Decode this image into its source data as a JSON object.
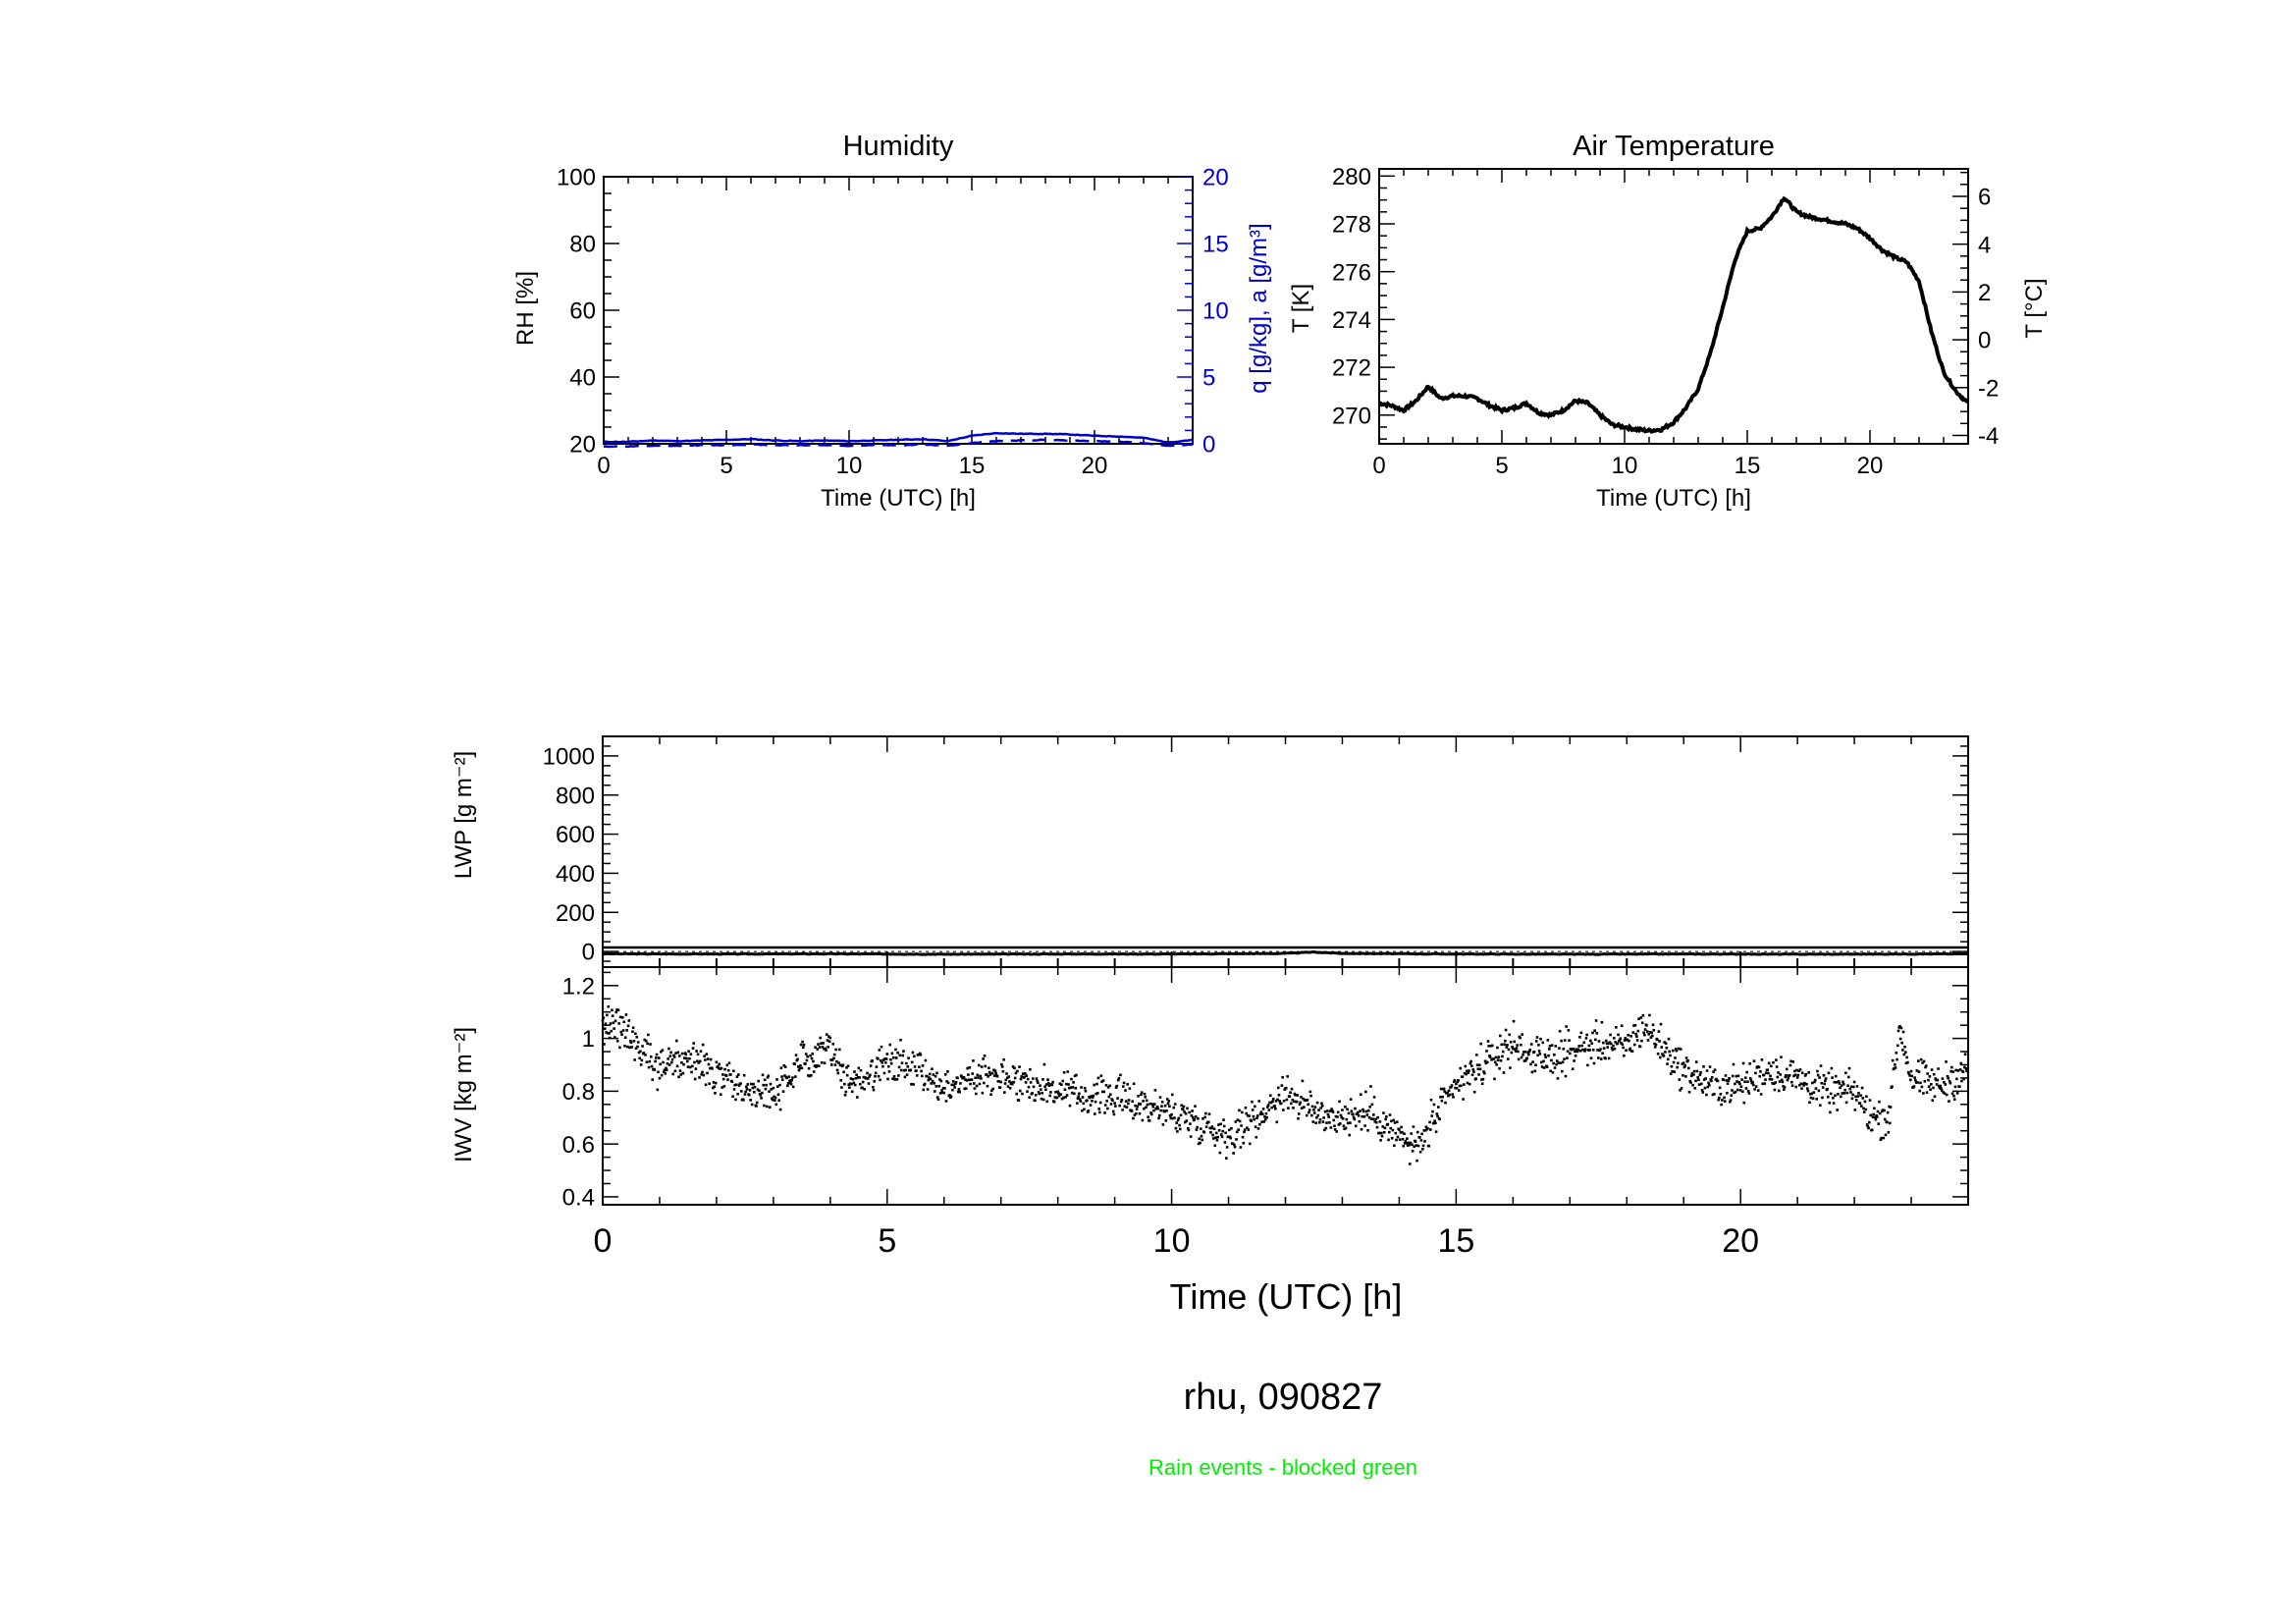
{
  "figure": {
    "station_label": "rhu, 090827",
    "rain_note": "Rain events - blocked green",
    "rain_note_color": "#00ee00"
  },
  "chart_data": [
    {
      "id": "humidity",
      "type": "line",
      "title": "Humidity",
      "xlabel": "Time (UTC) [h]",
      "ylabel": "RH [%]",
      "y2label": "q [g/kg], a [g/m³]",
      "y2color": "#0000cc",
      "xlim": [
        0,
        24
      ],
      "ylim": [
        20,
        100
      ],
      "y2lim": [
        0,
        20
      ],
      "xticks": [
        0,
        5,
        10,
        15,
        20
      ],
      "yticks": [
        20,
        40,
        60,
        80,
        100
      ],
      "y2ticks": [
        0,
        5,
        10,
        15,
        20
      ],
      "series": [
        {
          "axis": "right",
          "style": "solid",
          "color": "#0000cc",
          "x": [
            0,
            1,
            2,
            3,
            4,
            5,
            6,
            7,
            8,
            9,
            10,
            11,
            12,
            13,
            14,
            15,
            16,
            17,
            18,
            19,
            20,
            21,
            22,
            23,
            24
          ],
          "y": [
            0.15,
            0.15,
            0.25,
            0.2,
            0.25,
            0.3,
            0.35,
            0.25,
            0.2,
            0.25,
            0.2,
            0.25,
            0.3,
            0.35,
            0.2,
            0.6,
            0.8,
            0.75,
            0.75,
            0.7,
            0.6,
            0.55,
            0.45,
            0.1,
            0.3
          ]
        },
        {
          "axis": "right",
          "style": "dashed",
          "color": "#0000cc",
          "x": [
            0,
            1,
            2,
            3,
            4,
            5,
            6,
            7,
            8,
            9,
            10,
            11,
            12,
            13,
            14,
            15,
            16,
            17,
            18,
            19,
            20,
            21,
            22,
            23,
            24
          ],
          "y": [
            -0.2,
            -0.2,
            -0.15,
            -0.15,
            -0.1,
            -0.1,
            -0.05,
            -0.1,
            -0.1,
            -0.1,
            -0.15,
            -0.1,
            -0.1,
            -0.05,
            -0.15,
            0.05,
            0.2,
            0.25,
            0.3,
            0.25,
            0.2,
            0.15,
            0.05,
            -0.15,
            -0.05
          ]
        }
      ]
    },
    {
      "id": "air-temperature",
      "type": "line",
      "title": "Air Temperature",
      "xlabel": "Time (UTC) [h]",
      "ylabel": "T [K]",
      "y2label": "T [°C]",
      "xlim": [
        0,
        24
      ],
      "ylim": [
        268.8,
        280.3
      ],
      "y2lim": [
        -4.35,
        7.15
      ],
      "xticks": [
        0,
        5,
        10,
        15,
        20
      ],
      "yticks": [
        270,
        272,
        274,
        276,
        278,
        280
      ],
      "y2ticks": [
        -4,
        -2,
        0,
        2,
        4,
        6
      ],
      "series": [
        {
          "color": "#000000",
          "x": [
            0,
            0.5,
            1,
            1.5,
            2,
            2.5,
            3,
            3.5,
            4,
            4.5,
            5,
            5.5,
            6,
            6.5,
            7,
            7.5,
            8,
            8.5,
            9,
            9.5,
            10,
            10.5,
            11,
            11.5,
            12,
            12.5,
            13,
            13.5,
            14,
            14.5,
            15,
            15.5,
            16,
            16.5,
            17,
            17.5,
            18,
            18.5,
            19,
            19.5,
            20,
            20.5,
            21,
            21.5,
            22,
            22.5,
            23,
            23.5,
            24
          ],
          "y": [
            270.5,
            270.4,
            270.2,
            270.6,
            271.2,
            270.7,
            270.8,
            270.8,
            270.7,
            270.4,
            270.2,
            270.3,
            270.5,
            270.1,
            270.0,
            270.2,
            270.6,
            270.5,
            270.0,
            269.6,
            269.5,
            269.4,
            269.35,
            269.4,
            269.7,
            270.3,
            271.1,
            272.6,
            274.5,
            276.5,
            277.7,
            277.8,
            278.3,
            279.1,
            278.5,
            278.3,
            278.2,
            278.1,
            278.0,
            277.8,
            277.4,
            276.9,
            276.6,
            276.4,
            275.6,
            273.5,
            271.8,
            271.0,
            270.5
          ]
        }
      ]
    },
    {
      "id": "lwp",
      "type": "line",
      "ylabel": "LWP [g m⁻²]",
      "xlim": [
        0,
        24
      ],
      "ylim": [
        -80,
        1100
      ],
      "xticks": [
        0,
        5,
        10,
        15,
        20
      ],
      "yticks": [
        0,
        200,
        400,
        600,
        800,
        1000
      ],
      "series": [
        {
          "color": "#000000",
          "x": [
            0,
            2,
            4,
            6,
            8,
            10,
            12,
            12.5,
            13,
            15,
            17,
            19,
            21,
            23,
            24
          ],
          "y": [
            -12,
            -13,
            -12,
            -14,
            -13,
            -13,
            -10,
            -3,
            -10,
            -13,
            -14,
            -13,
            -14,
            -13,
            -12
          ]
        }
      ]
    },
    {
      "id": "iwv",
      "type": "scatter",
      "ylabel": "IWV [kg m⁻²]",
      "xlabel": "Time (UTC) [h]",
      "xlim": [
        0,
        24
      ],
      "ylim": [
        0.37,
        1.27
      ],
      "xticks": [
        0,
        5,
        10,
        15,
        20
      ],
      "yticks": [
        0.4,
        0.6,
        0.8,
        1.0,
        1.2
      ],
      "trend": {
        "x": [
          0,
          0.25,
          0.5,
          1,
          1.5,
          2,
          2.5,
          3,
          3.3,
          3.7,
          4,
          4.3,
          4.7,
          5,
          5.5,
          6,
          6.5,
          7,
          7.5,
          8,
          8.5,
          9,
          9.5,
          10,
          10.5,
          11,
          11.5,
          12,
          12.5,
          13,
          13.5,
          14,
          14.3,
          14.7,
          15,
          15.5,
          16,
          16.5,
          17,
          17.5,
          18,
          18.3,
          18.7,
          19,
          19.5,
          20,
          20.5,
          21,
          21.5,
          22,
          22.3,
          22.6,
          22.8,
          23,
          23.5,
          24
        ],
        "y": [
          1.03,
          1.07,
          1.0,
          0.9,
          0.92,
          0.86,
          0.8,
          0.8,
          0.85,
          0.95,
          0.98,
          0.83,
          0.86,
          0.92,
          0.9,
          0.8,
          0.86,
          0.86,
          0.83,
          0.8,
          0.78,
          0.78,
          0.75,
          0.72,
          0.68,
          0.63,
          0.7,
          0.8,
          0.72,
          0.7,
          0.72,
          0.63,
          0.58,
          0.72,
          0.82,
          0.9,
          0.98,
          0.92,
          0.95,
          0.98,
          0.97,
          1.05,
          0.95,
          0.88,
          0.82,
          0.82,
          0.88,
          0.85,
          0.8,
          0.8,
          0.7,
          0.7,
          1.05,
          0.85,
          0.82,
          0.88
        ],
        "spread": 0.045,
        "points_per_hour": 80
      }
    }
  ]
}
